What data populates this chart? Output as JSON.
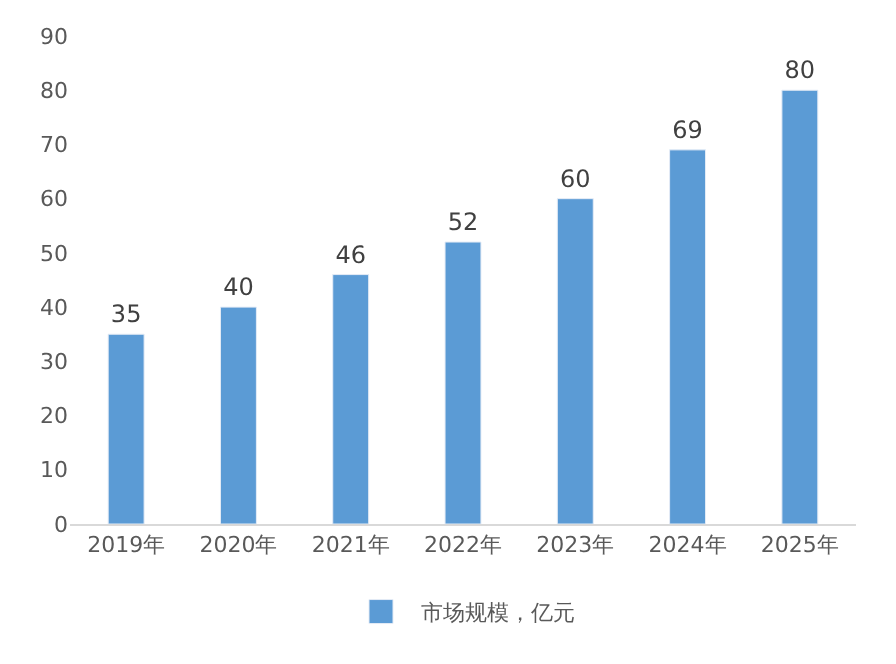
{
  "chart_data": {
    "type": "bar",
    "categories": [
      "2019年",
      "2020年",
      "2021年",
      "2022年",
      "2023年",
      "2024年",
      "2025年"
    ],
    "series": [
      {
        "name": "市场规模，亿元",
        "color": "#5b9bd5",
        "values": [
          35,
          40,
          46,
          52,
          60,
          69,
          80
        ]
      }
    ],
    "ylim": [
      0,
      90
    ],
    "yticks": [
      0,
      10,
      20,
      30,
      40,
      50,
      60,
      70,
      80,
      90
    ],
    "data_labels": true,
    "legend": "bottom",
    "grid": false
  }
}
